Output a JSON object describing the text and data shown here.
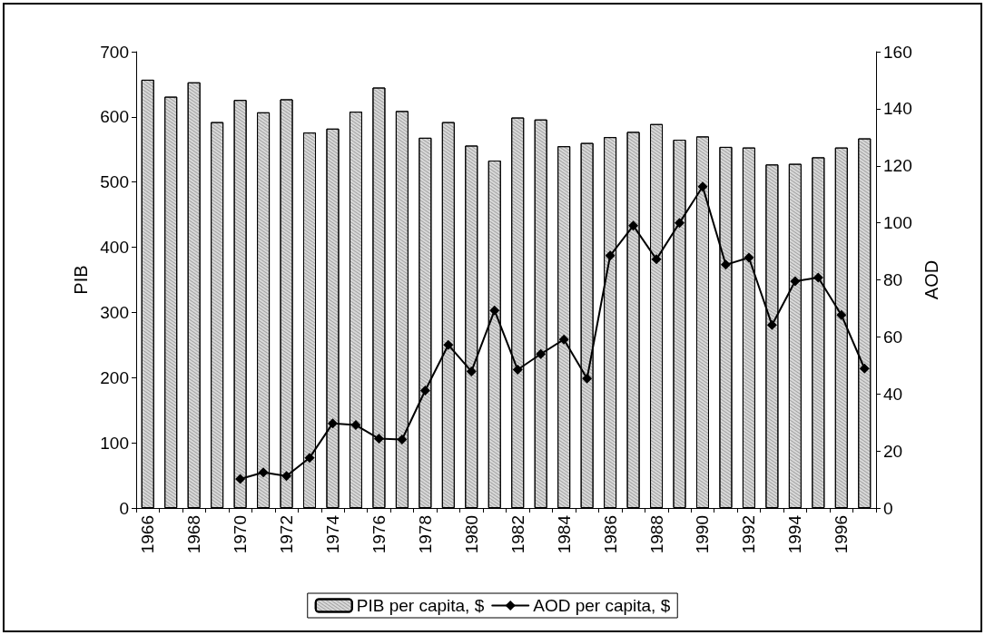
{
  "chart_data": {
    "type": "bar",
    "ylabel": "PIB",
    "y2label": "AOD",
    "categories": [
      "1966",
      null,
      "1968",
      null,
      "1970",
      null,
      "1972",
      null,
      "1974",
      null,
      "1976",
      null,
      "1978",
      null,
      "1980",
      null,
      "1982",
      null,
      "1984",
      null,
      "1986",
      null,
      "1988",
      null,
      "1990",
      null,
      "1992",
      null,
      "1994",
      null,
      "1996",
      null
    ],
    "series": [
      {
        "name": "PIB per capita, $",
        "color": "#d9d9d9",
        "values": [
          657,
          631,
          653,
          592,
          626,
          607,
          627,
          576,
          582,
          608,
          645,
          609,
          568,
          592,
          556,
          533,
          599,
          596,
          555,
          560,
          569,
          577,
          589,
          565,
          570,
          554,
          553,
          527,
          528,
          538,
          553,
          567
        ]
      },
      {
        "name": "AOD per capita, $",
        "type": "line",
        "axis": "y2",
        "color": "#000000",
        "values": [
          null,
          null,
          null,
          null,
          10.2,
          12.5,
          11.2,
          17.6,
          29.7,
          29.1,
          24.3,
          24,
          41.2,
          57.2,
          47.9,
          69.3,
          48.5,
          54,
          59.1,
          45.4,
          88.5,
          99,
          87.2,
          100,
          112.7,
          85.3,
          87.8,
          64.2,
          79.5,
          80.8,
          67.7,
          48.9
        ]
      }
    ],
    "ylim": [
      0,
      700
    ],
    "yticks": [
      0,
      100,
      200,
      300,
      400,
      500,
      600,
      700
    ],
    "y2lim": [
      0,
      160
    ],
    "y2ticks": [
      0,
      20,
      40,
      60,
      80,
      100,
      120,
      140,
      160
    ],
    "grid": false,
    "legend": "bottom",
    "marker": "diamond",
    "line_style": "solid"
  }
}
